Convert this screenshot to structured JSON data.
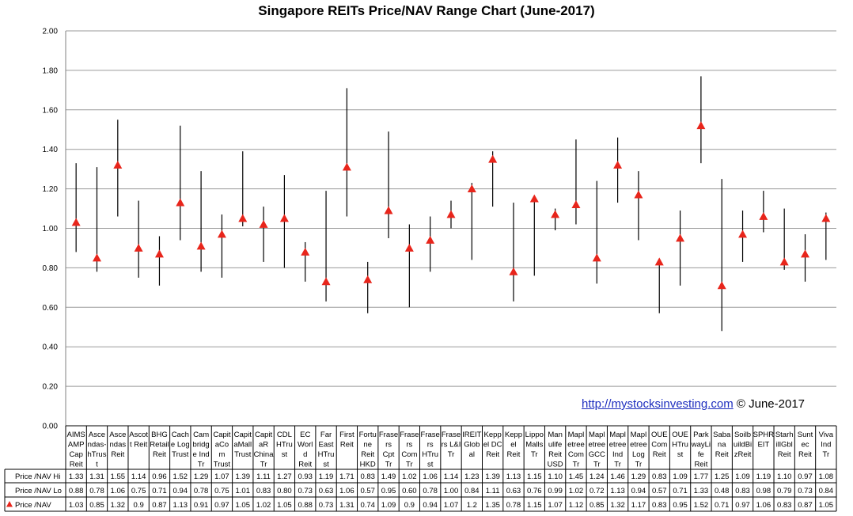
{
  "chart_data": {
    "type": "range",
    "title": "Singapore REITs Price/NAV Range Chart (June-2017)",
    "ylim": [
      0,
      2.0
    ],
    "yticks": [
      "0.00",
      "0.20",
      "0.40",
      "0.60",
      "0.80",
      "1.00",
      "1.20",
      "1.40",
      "1.60",
      "1.80",
      "2.00"
    ],
    "grid": true,
    "categories": [
      [
        "AIMS",
        "AMP",
        "Cap",
        "Reit"
      ],
      [
        "Asce",
        "ndas-",
        "hTrus",
        "t"
      ],
      [
        "Asce",
        "ndas",
        "Reit"
      ],
      [
        "Ascot",
        "t Reit"
      ],
      [
        "BHG",
        "Retail",
        "Reit"
      ],
      [
        "Cach",
        "e Log",
        "Trust"
      ],
      [
        "Cam",
        "bridg",
        "e Ind",
        "Tr"
      ],
      [
        "Capit",
        "aCo",
        "m",
        "Trust"
      ],
      [
        "Capit",
        "aMall",
        "Trust"
      ],
      [
        "Capit",
        "aR",
        "China",
        "Tr"
      ],
      [
        "CDL",
        "HTru",
        "st"
      ],
      [
        "EC",
        "Worl",
        "d",
        "Reit"
      ],
      [
        "Far",
        "East",
        "HTru",
        "st"
      ],
      [
        "First",
        "Reit"
      ],
      [
        "Fortu",
        "ne",
        "Reit",
        "HKD"
      ],
      [
        "Frase",
        "rs",
        "Cpt",
        "Tr"
      ],
      [
        "Frase",
        "rs",
        "Com",
        "Tr"
      ],
      [
        "Frase",
        "rs",
        "HTru",
        "st"
      ],
      [
        "Frase",
        "rs L&I",
        "Tr"
      ],
      [
        "IREIT",
        "Glob",
        "al"
      ],
      [
        "Kepp",
        "el DC",
        "Reit"
      ],
      [
        "Kepp",
        "el",
        "Reit"
      ],
      [
        "Lippo",
        "Malls",
        "Tr"
      ],
      [
        "Man",
        "ulife",
        "Reit",
        "USD"
      ],
      [
        "Mapl",
        "etree",
        "Com",
        "Tr"
      ],
      [
        "Mapl",
        "etree",
        "GCC",
        "Tr"
      ],
      [
        "Mapl",
        "etree",
        "Ind",
        "Tr"
      ],
      [
        "Mapl",
        "etree",
        "Log",
        "Tr"
      ],
      [
        "OUE",
        "Com",
        "Reit"
      ],
      [
        "OUE",
        "HTru",
        "st"
      ],
      [
        "Park",
        "wayLi",
        "fe",
        "Reit"
      ],
      [
        "Saba",
        "na",
        "Reit"
      ],
      [
        "Soilb",
        "uildBi",
        "zReit"
      ],
      [
        "SPHR",
        "EIT"
      ],
      [
        "Starh",
        "illGbl",
        "Reit"
      ],
      [
        "Sunt",
        "ec",
        "Reit"
      ],
      [
        "Viva",
        "Ind",
        "Tr"
      ]
    ],
    "series": [
      {
        "name": "Price /NAV Hi",
        "marker": "none",
        "values": [
          "1.33",
          "1.31",
          "1.55",
          "1.14",
          "0.96",
          "1.52",
          "1.29",
          "1.07",
          "1.39",
          "1.11",
          "1.27",
          "0.93",
          "1.19",
          "1.71",
          "0.83",
          "1.49",
          "1.02",
          "1.06",
          "1.14",
          "1.23",
          "1.39",
          "1.13",
          "1.15",
          "1.10",
          "1.45",
          "1.24",
          "1.46",
          "1.29",
          "0.83",
          "1.09",
          "1.77",
          "1.25",
          "1.09",
          "1.19",
          "1.10",
          "0.97",
          "1.08"
        ]
      },
      {
        "name": "Price /NAV Lo",
        "marker": "none",
        "values": [
          "0.88",
          "0.78",
          "1.06",
          "0.75",
          "0.71",
          "0.94",
          "0.78",
          "0.75",
          "1.01",
          "0.83",
          "0.80",
          "0.73",
          "0.63",
          "1.06",
          "0.57",
          "0.95",
          "0.60",
          "0.78",
          "1.00",
          "0.84",
          "1.11",
          "0.63",
          "0.76",
          "0.99",
          "1.02",
          "0.72",
          "1.13",
          "0.94",
          "0.57",
          "0.71",
          "1.33",
          "0.48",
          "0.83",
          "0.98",
          "0.79",
          "0.73",
          "0.84"
        ]
      },
      {
        "name": "Price /NAV",
        "marker": "triangle",
        "color": "#e8251b",
        "values": [
          "1.03",
          "0.85",
          "1.32",
          "0.9",
          "0.87",
          "1.13",
          "0.91",
          "0.97",
          "1.05",
          "1.02",
          "1.05",
          "0.88",
          "0.73",
          "1.31",
          "0.74",
          "1.09",
          "0.9",
          "0.94",
          "1.07",
          "1.2",
          "1.35",
          "0.78",
          "1.15",
          "1.07",
          "1.12",
          "0.85",
          "1.32",
          "1.17",
          "0.83",
          "0.95",
          "1.52",
          "0.71",
          "0.97",
          "1.06",
          "0.83",
          "0.87",
          "1.05"
        ]
      }
    ],
    "annotation": {
      "link": "http://mystocksinvesting.com",
      "suffix": " © June-2017"
    }
  }
}
